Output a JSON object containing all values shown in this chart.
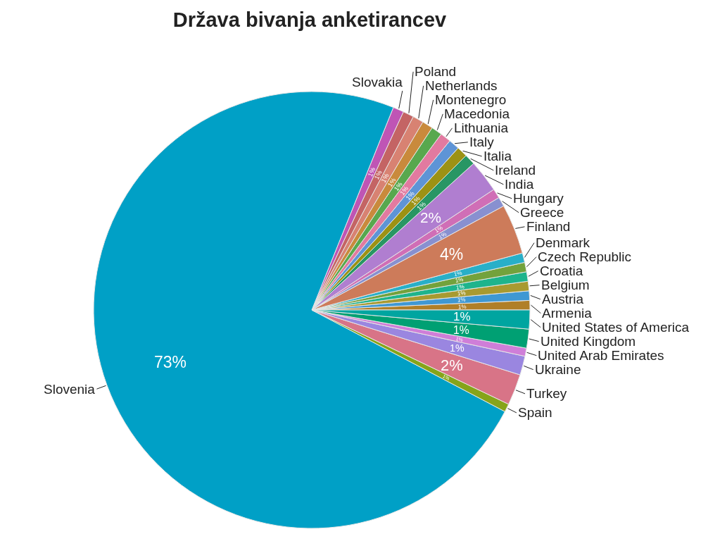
{
  "chart_data": {
    "type": "pie",
    "title": "Država bivanja anketirancev",
    "categories": [
      "Armenia",
      "Austria",
      "Belgium",
      "Croatia",
      "Czech Republic",
      "Denmark",
      "Finland",
      "Greece",
      "Hungary",
      "India",
      "Ireland",
      "Italia",
      "Italy",
      "Lithuania",
      "Macedonia",
      "Montenegro",
      "Netherlands",
      "Poland",
      "Slovakia",
      "Slovenia",
      "Spain",
      "Turkey",
      "Ukraine",
      "United Arab Emirates",
      "United Kingdom",
      "United States of America"
    ],
    "values": [
      0.7,
      0.7,
      0.7,
      0.7,
      0.7,
      0.7,
      3.7,
      0.7,
      0.7,
      2.4,
      0.8,
      0.8,
      0.8,
      0.8,
      0.8,
      0.8,
      0.8,
      0.8,
      0.8,
      73.4,
      0.6,
      2.3,
      1.4,
      0.6,
      1.4,
      1.4
    ],
    "colors": [
      "#b07f28",
      "#3f98d3",
      "#a89a30",
      "#1eb48c",
      "#73a23c",
      "#28afc8",
      "#cd7b5a",
      "#8890d0",
      "#d06eb6",
      "#b07ed0",
      "#289664",
      "#9c9214",
      "#5e94d6",
      "#e27aa0",
      "#58a84e",
      "#c98a3c",
      "#d88272",
      "#c46464",
      "#bf55b5",
      "#00a0c6",
      "#86a41a",
      "#d87487",
      "#9a86e0",
      "#cf7ed8",
      "#00a073",
      "#00a5a0"
    ],
    "value_labels": [
      "1%",
      "1%",
      "1%",
      "1%",
      "1%",
      "1%",
      "4%",
      "1%",
      "1%",
      "2%",
      "1%",
      "1%",
      "1%",
      "1%",
      "1%",
      "1%",
      "1%",
      "1%",
      "1%",
      "73%",
      "1%",
      "2%",
      "1%",
      "1%",
      "1%",
      "1%"
    ]
  }
}
